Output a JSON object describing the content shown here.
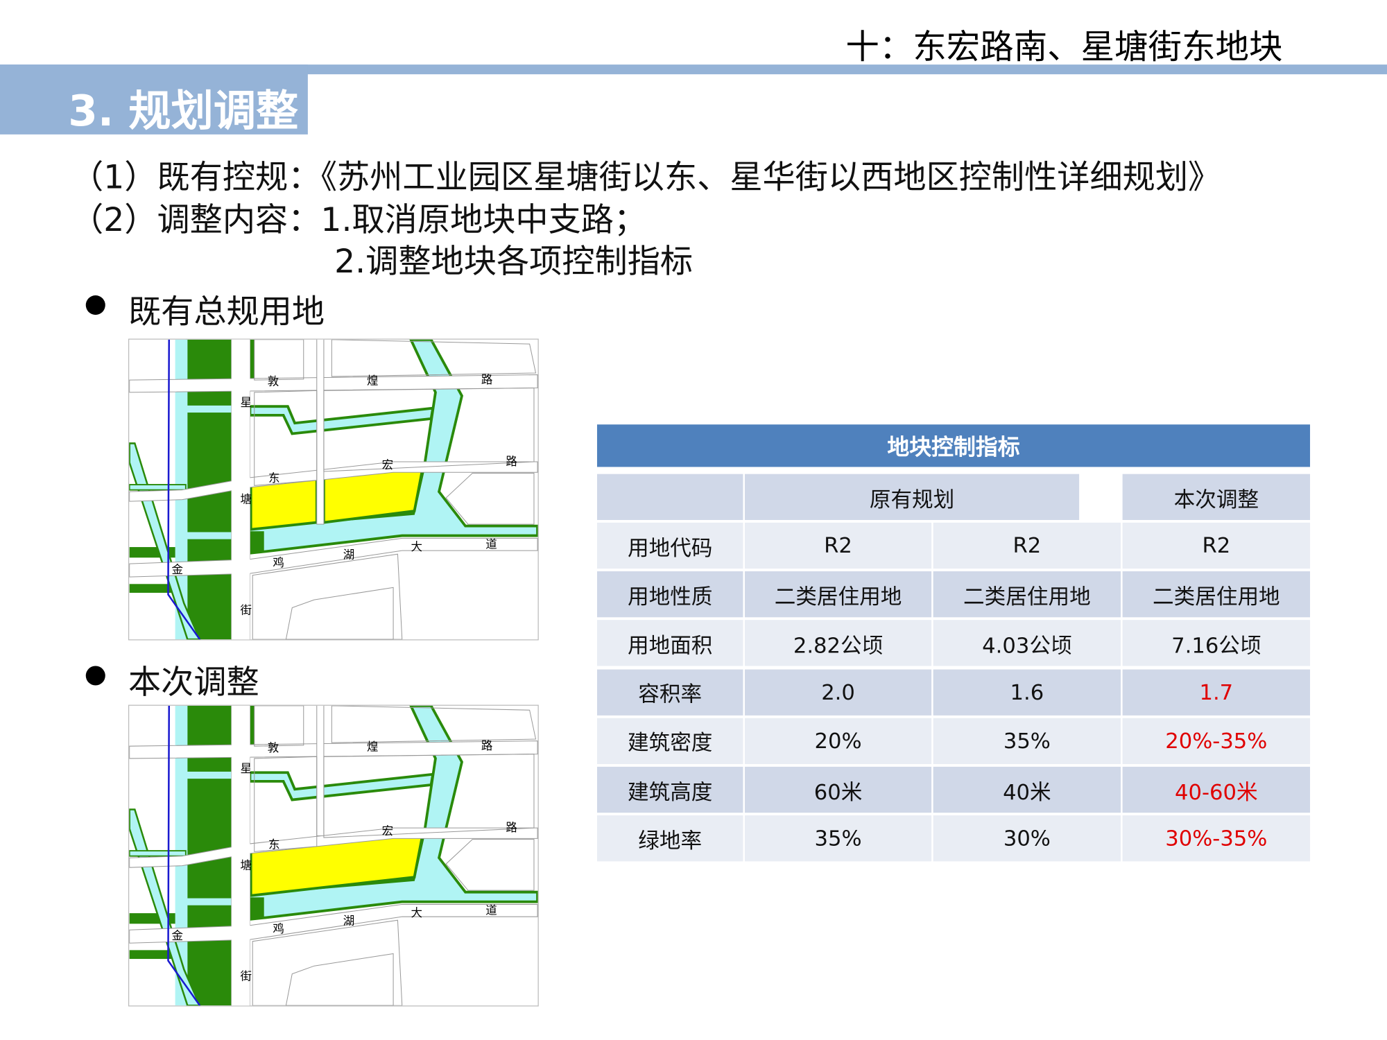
{
  "header": {
    "title": "十：东宏路南、星塘街东地块",
    "section": "3. 规划调整"
  },
  "body": {
    "line1": "（1）既有控规：《苏州工业园区星塘街以东、星华街以西地区控制性详细规划》",
    "line2": "（2）调整内容：1.取消原地块中支路；",
    "line3": "2.调整地块各项控制指标",
    "bullet1": "既有总规用地",
    "bullet2": "本次调整"
  },
  "map_labels": {
    "dun": "敦",
    "huang": "煌",
    "lu1": "路",
    "xing": "星",
    "dong": "东",
    "hong": "宏",
    "lu2": "路",
    "tang": "塘",
    "ji": "鸡",
    "hu": "湖",
    "da": "大",
    "dao": "道",
    "jin": "金",
    "jie": "街"
  },
  "colors": {
    "accent": "#95b3d7",
    "table_header": "#4f81bd",
    "highlight": "#e00000",
    "plot": "#ffff00",
    "green": "#2a8a0a",
    "water": "#b0f4f4"
  },
  "table": {
    "title": "地块控制指标",
    "col_original": "原有规划",
    "col_adjusted": "本次调整",
    "rows": [
      {
        "label": "用地代码",
        "a": "R2",
        "b": "R2",
        "c": "R2",
        "c_highlight": false
      },
      {
        "label": "用地性质",
        "a": "二类居住用地",
        "b": "二类居住用地",
        "c": "二类居住用地",
        "c_highlight": false
      },
      {
        "label": "用地面积",
        "a": "2.82公顷",
        "b": "4.03公顷",
        "c": "7.16公顷",
        "c_highlight": false
      },
      {
        "label": "容积率",
        "a": "2.0",
        "b": "1.6",
        "c": "1.7",
        "c_highlight": true
      },
      {
        "label": "建筑密度",
        "a": "20%",
        "b": "35%",
        "c": "20%-35%",
        "c_highlight": true
      },
      {
        "label": "建筑高度",
        "a": "60米",
        "b": "40米",
        "c": "40-60米",
        "c_highlight": true
      },
      {
        "label": "绿地率",
        "a": "35%",
        "b": "30%",
        "c": "30%-35%",
        "c_highlight": true
      }
    ]
  }
}
